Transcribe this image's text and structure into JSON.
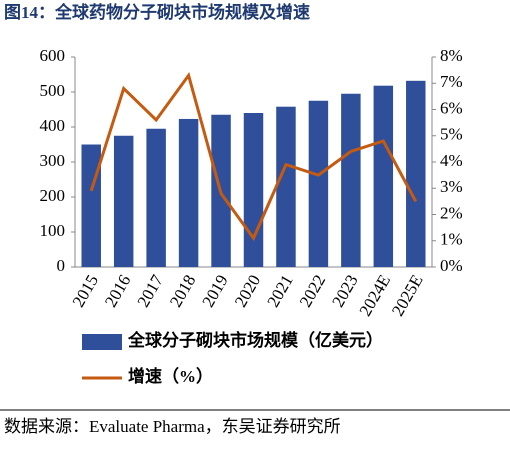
{
  "title": "图14：全球药物分子砌块市场规模及增速",
  "source": "数据来源：Evaluate Pharma，东吴证券研究所",
  "chart_data": {
    "type": "bar_line",
    "categories": [
      "2015",
      "2016",
      "2017",
      "2018",
      "2019",
      "2020",
      "2021",
      "2022",
      "2023",
      "2024E",
      "2025E"
    ],
    "series": [
      {
        "name": "全球分子砌块市场规模（亿美元）",
        "type": "bar",
        "color": "#2f4f9b",
        "values": [
          350,
          375,
          395,
          423,
          435,
          440,
          458,
          475,
          495,
          518,
          532
        ]
      },
      {
        "name": "增速（%）",
        "type": "line",
        "axis": "y2",
        "color": "#c55a11",
        "values": [
          2.9,
          6.8,
          5.6,
          7.3,
          2.8,
          1.1,
          3.9,
          3.5,
          4.4,
          4.8,
          2.5
        ]
      }
    ],
    "ylim": [
      0,
      600
    ],
    "yticks": [
      0,
      100,
      200,
      300,
      400,
      500,
      600
    ],
    "y2lim": [
      0,
      8
    ],
    "y2ticks": [
      {
        "value": 0,
        "label": "0%"
      },
      {
        "value": 1,
        "label": "1%"
      },
      {
        "value": 2,
        "label": "2%"
      },
      {
        "value": 3,
        "label": "3%"
      },
      {
        "value": 4,
        "label": "4%"
      },
      {
        "value": 5,
        "label": "5%"
      },
      {
        "value": 6,
        "label": "6%"
      },
      {
        "value": 7,
        "label": "7%"
      },
      {
        "value": 8,
        "label": "8%"
      }
    ]
  }
}
